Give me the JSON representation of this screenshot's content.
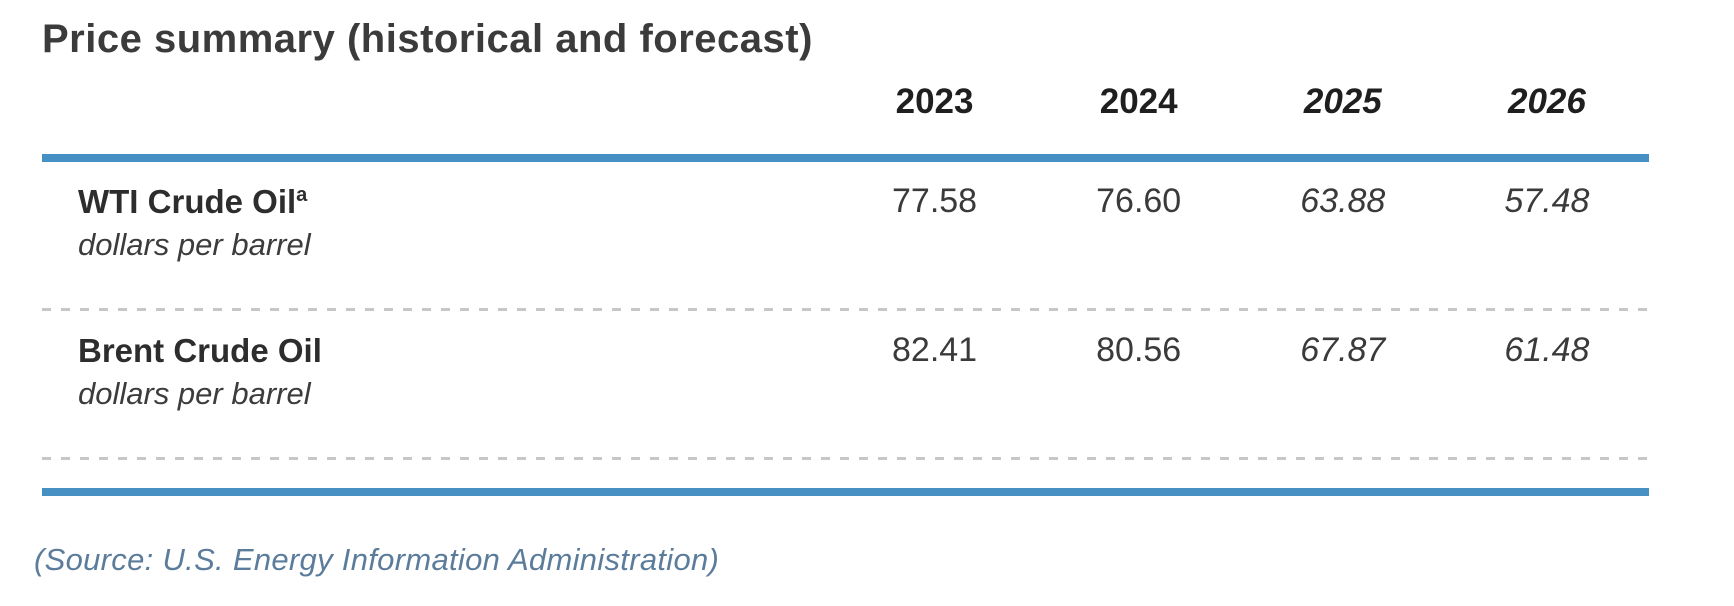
{
  "title": "Price summary (historical and forecast)",
  "source_note": "(Source: U.S. Energy Information Administration)",
  "colors": {
    "accent_blue": "#4690c4",
    "title_text": "#3b3b3b",
    "value_text": "#3a3a3a",
    "source_text": "#5b7c9b",
    "dashed_separator": "#c7c7c7"
  },
  "chart_data": {
    "type": "table",
    "title": "Price summary (historical and forecast)",
    "columns": [
      "2023",
      "2024",
      "2025",
      "2026"
    ],
    "forecast_columns": [
      "2025",
      "2026"
    ],
    "rows": [
      {
        "name": "WTI Crude Oil",
        "superscript": "a",
        "unit": "dollars per barrel",
        "values": [
          "77.58",
          "76.60",
          "63.88",
          "57.48"
        ]
      },
      {
        "name": "Brent Crude Oil",
        "superscript": "",
        "unit": "dollars per barrel",
        "values": [
          "82.41",
          "80.56",
          "67.87",
          "61.48"
        ]
      }
    ],
    "source": "(Source: U.S. Energy Information Administration)"
  }
}
